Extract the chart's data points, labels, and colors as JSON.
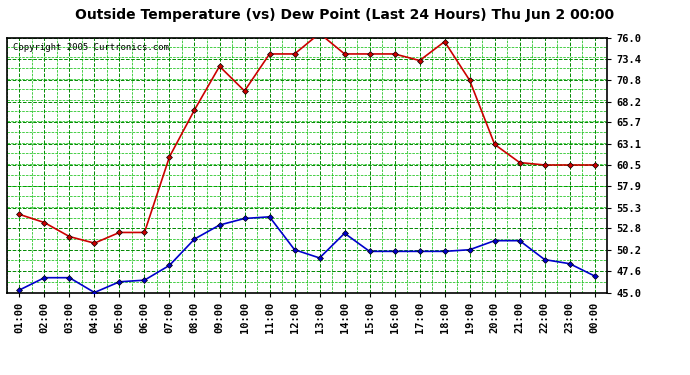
{
  "title": "Outside Temperature (vs) Dew Point (Last 24 Hours) Thu Jun 2 00:00",
  "copyright": "Copyright 2005 Curtronics.com",
  "x_labels": [
    "01:00",
    "02:00",
    "03:00",
    "04:00",
    "05:00",
    "06:00",
    "07:00",
    "08:00",
    "09:00",
    "10:00",
    "11:00",
    "12:00",
    "13:00",
    "14:00",
    "15:00",
    "16:00",
    "17:00",
    "18:00",
    "19:00",
    "20:00",
    "21:00",
    "22:00",
    "23:00",
    "00:00"
  ],
  "y_ticks": [
    45.0,
    47.6,
    50.2,
    52.8,
    55.3,
    57.9,
    60.5,
    63.1,
    65.7,
    68.2,
    70.8,
    73.4,
    76.0
  ],
  "y_min": 45.0,
  "y_max": 76.0,
  "temp_values": [
    54.5,
    53.5,
    51.8,
    51.0,
    52.3,
    52.3,
    61.5,
    67.2,
    72.5,
    69.5,
    74.0,
    74.0,
    76.5,
    74.0,
    74.0,
    74.0,
    73.2,
    75.5,
    70.8,
    63.0,
    60.8,
    60.5,
    60.5,
    60.5
  ],
  "dew_values": [
    45.3,
    46.8,
    46.8,
    45.0,
    46.3,
    46.5,
    48.3,
    51.5,
    53.2,
    54.0,
    54.2,
    50.2,
    49.2,
    52.2,
    50.0,
    50.0,
    50.0,
    50.0,
    50.2,
    51.3,
    51.3,
    49.0,
    48.5,
    47.0
  ],
  "temp_color": "#cc0000",
  "dew_color": "#0000cc",
  "bg_color": "#ffffff",
  "plot_bg": "#ffffff",
  "grid_color_major": "#008800",
  "grid_color_minor": "#00bb00",
  "title_fontsize": 10,
  "tick_fontsize": 7.5,
  "copyright_fontsize": 6.5,
  "marker_size": 3,
  "line_width": 1.2
}
